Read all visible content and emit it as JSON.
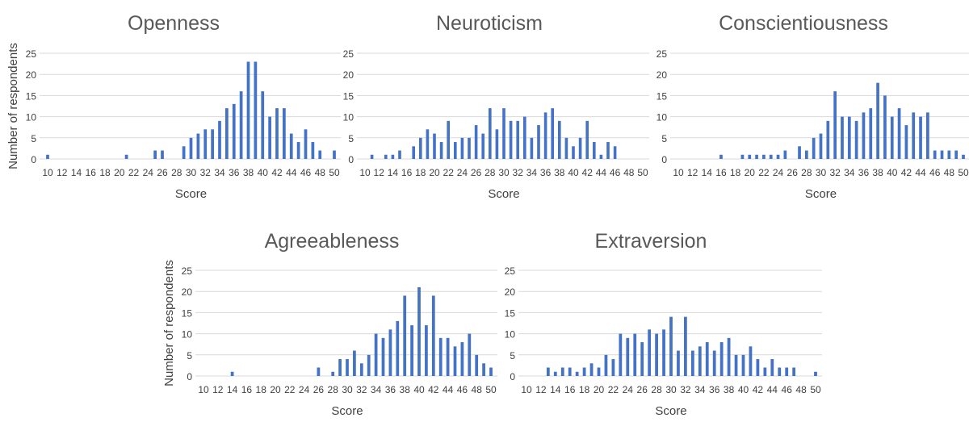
{
  "chart_data": [
    {
      "type": "bar",
      "title": "Openness",
      "xlabel": "Score",
      "ylabel": "Number of respondents",
      "ylim": [
        0,
        25
      ],
      "yticks": [
        "0",
        "5",
        "10",
        "15",
        "20",
        "25"
      ],
      "xlim": [
        10,
        50
      ],
      "xticks": [
        "10",
        "12",
        "14",
        "16",
        "18",
        "20",
        "22",
        "24",
        "26",
        "28",
        "30",
        "32",
        "34",
        "36",
        "38",
        "40",
        "42",
        "44",
        "46",
        "48",
        "50"
      ],
      "grid": true,
      "bar_color": "#4472C4",
      "x": [
        10,
        21,
        25,
        26,
        29,
        30,
        31,
        32,
        33,
        34,
        35,
        36,
        37,
        38,
        39,
        40,
        41,
        42,
        43,
        44,
        45,
        46,
        47,
        48,
        50
      ],
      "values": [
        1,
        1,
        2,
        2,
        3,
        5,
        6,
        7,
        7,
        9,
        12,
        13,
        16,
        23,
        23,
        16,
        10,
        12,
        12,
        6,
        4,
        7,
        4,
        2,
        2
      ]
    },
    {
      "type": "bar",
      "title": "Neuroticism",
      "xlabel": "Score",
      "ylabel": "",
      "ylim": [
        0,
        25
      ],
      "yticks": [
        "0",
        "5",
        "10",
        "15",
        "20",
        "25"
      ],
      "xlim": [
        10,
        50
      ],
      "xticks": [
        "10",
        "12",
        "14",
        "16",
        "18",
        "20",
        "22",
        "24",
        "26",
        "28",
        "30",
        "32",
        "34",
        "36",
        "38",
        "40",
        "42",
        "44",
        "46",
        "48",
        "50"
      ],
      "grid": true,
      "bar_color": "#4472C4",
      "x": [
        11,
        13,
        14,
        15,
        17,
        18,
        19,
        20,
        21,
        22,
        23,
        24,
        25,
        26,
        27,
        28,
        29,
        30,
        31,
        32,
        33,
        34,
        35,
        36,
        37,
        38,
        39,
        40,
        41,
        42,
        43,
        44,
        45,
        46
      ],
      "values": [
        1,
        1,
        1,
        2,
        3,
        5,
        7,
        6,
        4,
        9,
        4,
        5,
        5,
        8,
        6,
        12,
        7,
        12,
        9,
        9,
        10,
        5,
        8,
        11,
        12,
        9,
        5,
        3,
        5,
        9,
        4,
        1,
        4,
        3
      ]
    },
    {
      "type": "bar",
      "title": "Conscientiousness",
      "xlabel": "Score",
      "ylabel": "",
      "ylim": [
        0,
        25
      ],
      "yticks": [
        "0",
        "5",
        "10",
        "15",
        "20",
        "25"
      ],
      "xlim": [
        10,
        50
      ],
      "xticks": [
        "10",
        "12",
        "14",
        "16",
        "18",
        "20",
        "22",
        "24",
        "26",
        "28",
        "30",
        "32",
        "34",
        "36",
        "38",
        "40",
        "42",
        "44",
        "46",
        "48",
        "50"
      ],
      "grid": true,
      "bar_color": "#4472C4",
      "x": [
        16,
        19,
        20,
        21,
        22,
        23,
        24,
        25,
        27,
        28,
        29,
        30,
        31,
        32,
        33,
        34,
        35,
        36,
        37,
        38,
        39,
        40,
        41,
        42,
        43,
        44,
        45,
        46,
        47,
        48,
        49,
        50
      ],
      "values": [
        1,
        1,
        1,
        1,
        1,
        1,
        1,
        2,
        3,
        2,
        5,
        6,
        9,
        16,
        10,
        10,
        9,
        11,
        12,
        18,
        15,
        10,
        12,
        8,
        11,
        10,
        11,
        2,
        2,
        2,
        2,
        1
      ]
    },
    {
      "type": "bar",
      "title": "Agreeableness",
      "xlabel": "Score",
      "ylabel": "Number of respondents",
      "ylim": [
        0,
        25
      ],
      "yticks": [
        "0",
        "5",
        "10",
        "15",
        "20",
        "25"
      ],
      "xlim": [
        10,
        50
      ],
      "xticks": [
        "10",
        "12",
        "14",
        "16",
        "18",
        "20",
        "22",
        "24",
        "26",
        "28",
        "30",
        "32",
        "34",
        "36",
        "38",
        "40",
        "42",
        "44",
        "46",
        "48",
        "50"
      ],
      "grid": true,
      "bar_color": "#4472C4",
      "x": [
        14,
        26,
        28,
        29,
        30,
        31,
        32,
        33,
        34,
        35,
        36,
        37,
        38,
        39,
        40,
        41,
        42,
        43,
        44,
        45,
        46,
        47,
        48,
        49,
        50
      ],
      "values": [
        1,
        2,
        1,
        4,
        4,
        6,
        3,
        5,
        10,
        9,
        11,
        13,
        19,
        12,
        21,
        12,
        19,
        9,
        9,
        7,
        8,
        10,
        5,
        3,
        2
      ]
    },
    {
      "type": "bar",
      "title": "Extraversion",
      "xlabel": "Score",
      "ylabel": "",
      "ylim": [
        0,
        25
      ],
      "yticks": [
        "0",
        "5",
        "10",
        "15",
        "20",
        "25"
      ],
      "xlim": [
        10,
        50
      ],
      "xticks": [
        "10",
        "12",
        "14",
        "16",
        "18",
        "20",
        "22",
        "24",
        "26",
        "28",
        "30",
        "32",
        "34",
        "36",
        "38",
        "40",
        "42",
        "44",
        "46",
        "48",
        "50"
      ],
      "grid": true,
      "bar_color": "#4472C4",
      "x": [
        13,
        14,
        15,
        16,
        17,
        18,
        19,
        20,
        21,
        22,
        23,
        24,
        25,
        26,
        27,
        28,
        29,
        30,
        31,
        32,
        33,
        34,
        35,
        36,
        37,
        38,
        39,
        40,
        41,
        42,
        43,
        44,
        45,
        46,
        47,
        50
      ],
      "values": [
        2,
        1,
        2,
        2,
        1,
        2,
        3,
        2,
        5,
        4,
        10,
        9,
        10,
        8,
        11,
        10,
        11,
        14,
        6,
        14,
        6,
        7,
        8,
        6,
        8,
        9,
        5,
        5,
        7,
        4,
        2,
        4,
        2,
        2,
        2,
        1
      ]
    }
  ]
}
